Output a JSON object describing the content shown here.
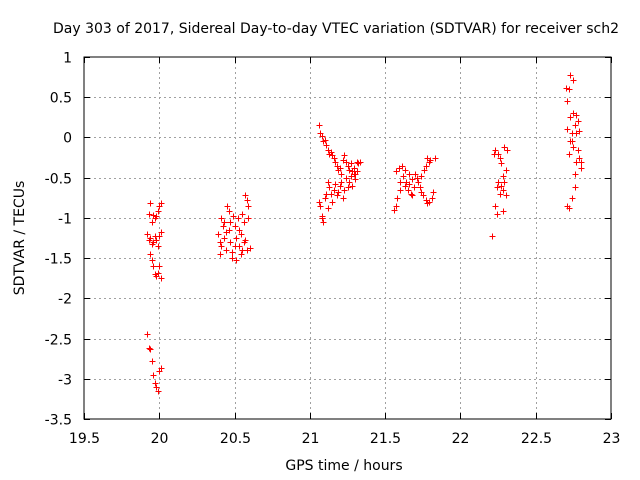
{
  "chart_data": {
    "type": "scatter",
    "title": "Day 303 of 2017, Sidereal Day-to-day VTEC variation (SDTVAR) for receiver sch2",
    "xlabel": "GPS time / hours",
    "ylabel": "SDTVAR / TECUs",
    "xlim": [
      19.5,
      23
    ],
    "ylim": [
      -3.5,
      1
    ],
    "xticks": [
      "19.5",
      "20",
      "20.5",
      "21",
      "21.5",
      "22",
      "22.5",
      "23"
    ],
    "yticks": [
      "1",
      "0.5",
      "0",
      "-0.5",
      "-1",
      "-1.5",
      "-2",
      "-2.5",
      "-3",
      "-3.5"
    ],
    "grid": true,
    "marker": "+",
    "color": "#ff0000",
    "series": [
      {
        "name": "SDTVAR",
        "points": [
          [
            19.93,
            -0.95
          ],
          [
            19.94,
            -0.82
          ],
          [
            19.95,
            -1.05
          ],
          [
            19.96,
            -0.97
          ],
          [
            19.97,
            -1.0
          ],
          [
            19.98,
            -0.98
          ],
          [
            19.99,
            -0.92
          ],
          [
            20.0,
            -0.85
          ],
          [
            20.01,
            -0.82
          ],
          [
            19.92,
            -1.2
          ],
          [
            19.93,
            -1.28
          ],
          [
            19.94,
            -1.25
          ],
          [
            19.95,
            -1.32
          ],
          [
            19.96,
            -1.3
          ],
          [
            19.97,
            -1.22
          ],
          [
            19.98,
            -1.28
          ],
          [
            19.99,
            -1.35
          ],
          [
            20.0,
            -1.22
          ],
          [
            20.01,
            -1.18
          ],
          [
            19.94,
            -1.45
          ],
          [
            19.95,
            -1.52
          ],
          [
            19.96,
            -1.6
          ],
          [
            19.97,
            -1.7
          ],
          [
            19.98,
            -1.72
          ],
          [
            19.99,
            -1.68
          ],
          [
            20.0,
            -1.6
          ],
          [
            20.01,
            -1.75
          ],
          [
            19.92,
            -2.44
          ],
          [
            19.93,
            -2.62
          ],
          [
            19.94,
            -2.63
          ],
          [
            19.95,
            -2.78
          ],
          [
            19.96,
            -2.95
          ],
          [
            19.97,
            -3.05
          ],
          [
            19.98,
            -3.1
          ],
          [
            19.99,
            -3.15
          ],
          [
            20.0,
            -2.9
          ],
          [
            20.01,
            -2.86
          ],
          [
            20.39,
            -1.2
          ],
          [
            20.4,
            -1.3
          ],
          [
            20.4,
            -1.45
          ],
          [
            20.41,
            -1.35
          ],
          [
            20.42,
            -1.1
          ],
          [
            20.43,
            -1.05
          ],
          [
            20.43,
            -1.25
          ],
          [
            20.44,
            -1.4
          ],
          [
            20.45,
            -0.85
          ],
          [
            20.46,
            -0.92
          ],
          [
            20.46,
            -1.15
          ],
          [
            20.47,
            -1.3
          ],
          [
            20.48,
            -1.42
          ],
          [
            20.48,
            -1.5
          ],
          [
            20.49,
            -0.98
          ],
          [
            20.5,
            -1.1
          ],
          [
            20.51,
            -1.25
          ],
          [
            20.51,
            -1.52
          ],
          [
            20.52,
            -1.0
          ],
          [
            20.53,
            -1.35
          ],
          [
            20.54,
            -1.2
          ],
          [
            20.54,
            -1.45
          ],
          [
            20.55,
            -0.95
          ],
          [
            20.56,
            -1.05
          ],
          [
            20.56,
            -1.3
          ],
          [
            20.57,
            -0.72
          ],
          [
            20.58,
            -0.78
          ],
          [
            20.58,
            -1.4
          ],
          [
            20.59,
            -1.0
          ],
          [
            20.6,
            -1.38
          ],
          [
            20.41,
            -1.0
          ],
          [
            20.44,
            -1.18
          ],
          [
            20.47,
            -1.05
          ],
          [
            20.5,
            -1.35
          ],
          [
            20.53,
            -1.15
          ],
          [
            20.55,
            -1.4
          ],
          [
            20.57,
            -1.28
          ],
          [
            20.59,
            -0.85
          ],
          [
            21.06,
            0.15
          ],
          [
            21.07,
            0.05
          ],
          [
            21.08,
            0.02
          ],
          [
            21.09,
            -0.05
          ],
          [
            21.1,
            -0.03
          ],
          [
            21.11,
            -0.1
          ],
          [
            21.12,
            -0.15
          ],
          [
            21.13,
            -0.2
          ],
          [
            21.14,
            -0.18
          ],
          [
            21.15,
            -0.22
          ],
          [
            21.16,
            -0.25
          ],
          [
            21.17,
            -0.3
          ],
          [
            21.18,
            -0.35
          ],
          [
            21.19,
            -0.4
          ],
          [
            21.2,
            -0.38
          ],
          [
            21.21,
            -0.45
          ],
          [
            21.22,
            -0.28
          ],
          [
            21.23,
            -0.22
          ],
          [
            21.24,
            -0.3
          ],
          [
            21.25,
            -0.35
          ],
          [
            21.26,
            -0.4
          ],
          [
            21.27,
            -0.32
          ],
          [
            21.28,
            -0.42
          ],
          [
            21.29,
            -0.38
          ],
          [
            21.3,
            -0.45
          ],
          [
            21.31,
            -0.3
          ],
          [
            21.32,
            -0.32
          ],
          [
            21.33,
            -0.3
          ],
          [
            21.06,
            -0.8
          ],
          [
            21.07,
            -0.85
          ],
          [
            21.08,
            -1.0
          ],
          [
            21.09,
            -1.05
          ],
          [
            21.1,
            -0.75
          ],
          [
            21.11,
            -0.7
          ],
          [
            21.12,
            -0.55
          ],
          [
            21.13,
            -0.62
          ],
          [
            21.14,
            -0.7
          ],
          [
            21.15,
            -0.8
          ],
          [
            21.16,
            -0.65
          ],
          [
            21.17,
            -0.58
          ],
          [
            21.18,
            -0.72
          ],
          [
            21.19,
            -0.68
          ],
          [
            21.2,
            -0.6
          ],
          [
            21.21,
            -0.55
          ],
          [
            21.22,
            -0.75
          ],
          [
            21.23,
            -0.65
          ],
          [
            21.24,
            -0.5
          ],
          [
            21.25,
            -0.62
          ],
          [
            21.26,
            -0.55
          ],
          [
            21.27,
            -0.48
          ],
          [
            21.28,
            -0.6
          ],
          [
            21.29,
            -0.45
          ],
          [
            21.3,
            -0.52
          ],
          [
            21.31,
            -0.42
          ],
          [
            21.12,
            -0.88
          ],
          [
            21.08,
            -0.98
          ],
          [
            21.56,
            -0.9
          ],
          [
            21.57,
            -0.85
          ],
          [
            21.57,
            -0.42
          ],
          [
            21.58,
            -0.75
          ],
          [
            21.59,
            -0.38
          ],
          [
            21.6,
            -0.55
          ],
          [
            21.61,
            -0.35
          ],
          [
            21.62,
            -0.48
          ],
          [
            21.63,
            -0.6
          ],
          [
            21.63,
            -0.4
          ],
          [
            21.64,
            -0.55
          ],
          [
            21.65,
            -0.65
          ],
          [
            21.66,
            -0.58
          ],
          [
            21.66,
            -0.45
          ],
          [
            21.67,
            -0.7
          ],
          [
            21.68,
            -0.52
          ],
          [
            21.69,
            -0.62
          ],
          [
            21.7,
            -0.45
          ],
          [
            21.71,
            -0.5
          ],
          [
            21.72,
            -0.55
          ],
          [
            21.73,
            -0.62
          ],
          [
            21.74,
            -0.48
          ],
          [
            21.75,
            -0.72
          ],
          [
            21.76,
            -0.4
          ],
          [
            21.77,
            -0.35
          ],
          [
            21.77,
            -0.78
          ],
          [
            21.78,
            -0.25
          ],
          [
            21.79,
            -0.3
          ],
          [
            21.79,
            -0.8
          ],
          [
            21.8,
            -0.28
          ],
          [
            21.81,
            -0.75
          ],
          [
            21.82,
            -0.68
          ],
          [
            21.83,
            -0.25
          ],
          [
            21.6,
            -0.65
          ],
          [
            21.68,
            -0.72
          ],
          [
            21.74,
            -0.68
          ],
          [
            21.78,
            -0.82
          ],
          [
            22.21,
            -1.23
          ],
          [
            22.22,
            -0.2
          ],
          [
            22.23,
            -0.15
          ],
          [
            22.23,
            -0.85
          ],
          [
            22.24,
            -0.95
          ],
          [
            22.25,
            -0.55
          ],
          [
            22.25,
            -0.2
          ],
          [
            22.26,
            -0.7
          ],
          [
            22.27,
            -0.6
          ],
          [
            22.27,
            -0.32
          ],
          [
            22.28,
            -0.65
          ],
          [
            22.28,
            -0.92
          ],
          [
            22.29,
            -0.12
          ],
          [
            22.29,
            -0.55
          ],
          [
            22.3,
            -0.72
          ],
          [
            22.3,
            -0.4
          ],
          [
            22.31,
            -0.15
          ],
          [
            22.26,
            -0.25
          ],
          [
            22.24,
            -0.62
          ],
          [
            22.28,
            -0.48
          ],
          [
            22.7,
            0.62
          ],
          [
            22.71,
            0.45
          ],
          [
            22.71,
            -0.85
          ],
          [
            22.72,
            0.6
          ],
          [
            22.72,
            -0.2
          ],
          [
            22.73,
            0.25
          ],
          [
            22.73,
            0.78
          ],
          [
            22.74,
            0.05
          ],
          [
            22.74,
            -0.05
          ],
          [
            22.75,
            0.72
          ],
          [
            22.75,
            0.3
          ],
          [
            22.76,
            0.15
          ],
          [
            22.76,
            -0.45
          ],
          [
            22.77,
            -0.3
          ],
          [
            22.77,
            0.05
          ],
          [
            22.78,
            -0.15
          ],
          [
            22.78,
            0.2
          ],
          [
            22.79,
            -0.25
          ],
          [
            22.79,
            0.08
          ],
          [
            22.8,
            -0.3
          ],
          [
            22.8,
            -0.38
          ],
          [
            22.71,
            0.1
          ],
          [
            22.73,
            -0.05
          ],
          [
            22.75,
            -0.12
          ],
          [
            22.77,
            0.28
          ],
          [
            22.72,
            -0.88
          ],
          [
            22.74,
            -0.75
          ],
          [
            22.76,
            -0.62
          ]
        ]
      }
    ]
  }
}
